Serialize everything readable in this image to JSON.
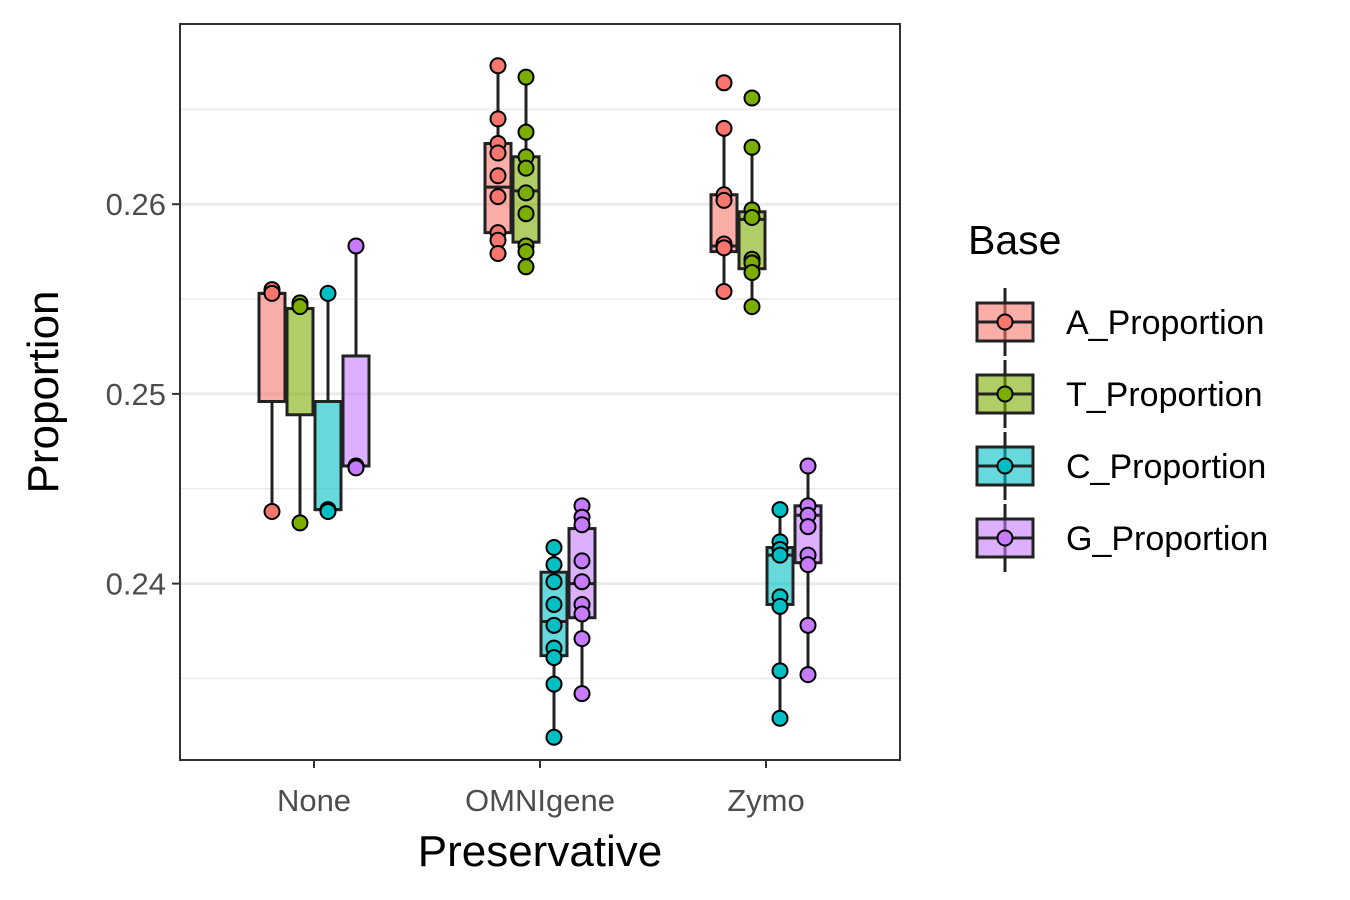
{
  "chart_data": {
    "type": "box",
    "xlabel": "Preservative",
    "ylabel": "Proportion",
    "categories": [
      "None",
      "OMNIgene",
      "Zymo"
    ],
    "ylim": [
      0.2307,
      0.2695
    ],
    "yticks": [
      0.24,
      0.25,
      0.26
    ],
    "ytick_labels": [
      "0.24",
      "0.25",
      "0.26"
    ],
    "grid": true,
    "legend": {
      "title": "Base",
      "position": "right"
    },
    "series": [
      {
        "name": "A_Proportion",
        "color": "#F8766D",
        "boxes": [
          {
            "q1": 0.2496,
            "median": 0.2553,
            "q3": 0.2553,
            "lower": 0.2438,
            "upper": 0.2555
          },
          {
            "q1": 0.2585,
            "median": 0.2609,
            "q3": 0.2632,
            "lower": 0.2573,
            "upper": 0.2673
          },
          {
            "q1": 0.2575,
            "median": 0.2578,
            "q3": 0.2605,
            "lower": 0.2554,
            "upper": 0.264
          }
        ],
        "points": [
          [
            0.2555,
            0.2553,
            0.2438
          ],
          [
            0.2673,
            0.2645,
            0.2632,
            0.2627,
            0.2615,
            0.2604,
            0.2585,
            0.2581,
            0.2574
          ],
          [
            0.2664,
            0.264,
            0.2605,
            0.2602,
            0.2579,
            0.2577,
            0.2554
          ]
        ]
      },
      {
        "name": "T_Proportion",
        "color": "#7CAE00",
        "boxes": [
          {
            "q1": 0.2489,
            "median": 0.2545,
            "q3": 0.2545,
            "lower": 0.2432,
            "upper": 0.2548
          },
          {
            "q1": 0.258,
            "median": 0.2607,
            "q3": 0.2625,
            "lower": 0.2567,
            "upper": 0.2667
          },
          {
            "q1": 0.2566,
            "median": 0.2592,
            "q3": 0.2596,
            "lower": 0.2546,
            "upper": 0.263
          }
        ],
        "points": [
          [
            0.2548,
            0.2546,
            0.2432
          ],
          [
            0.2667,
            0.2638,
            0.2625,
            0.2619,
            0.2606,
            0.2595,
            0.2578,
            0.2575,
            0.2567
          ],
          [
            0.2656,
            0.263,
            0.2597,
            0.2593,
            0.2571,
            0.2569,
            0.2564,
            0.2546
          ]
        ]
      },
      {
        "name": "C_Proportion",
        "color": "#00BFC4",
        "boxes": [
          {
            "q1": 0.2439,
            "median": 0.2439,
            "q3": 0.2496,
            "lower": 0.2439,
            "upper": 0.2553
          },
          {
            "q1": 0.2362,
            "median": 0.238,
            "q3": 0.2406,
            "lower": 0.2319,
            "upper": 0.2419
          },
          {
            "q1": 0.2389,
            "median": 0.2415,
            "q3": 0.2419,
            "lower": 0.2329,
            "upper": 0.2439
          }
        ],
        "points": [
          [
            0.2553,
            0.2439,
            0.2438
          ],
          [
            0.2419,
            0.241,
            0.2401,
            0.2389,
            0.2378,
            0.2366,
            0.2361,
            0.2347,
            0.2319
          ],
          [
            0.2439,
            0.2422,
            0.2418,
            0.2415,
            0.2393,
            0.2388,
            0.2354,
            0.2329
          ]
        ]
      },
      {
        "name": "G_Proportion",
        "color": "#C77CFF",
        "boxes": [
          {
            "q1": 0.2462,
            "median": 0.2462,
            "q3": 0.252,
            "lower": 0.2462,
            "upper": 0.2578
          },
          {
            "q1": 0.2382,
            "median": 0.24,
            "q3": 0.2429,
            "lower": 0.2342,
            "upper": 0.2441
          },
          {
            "q1": 0.2411,
            "median": 0.2436,
            "q3": 0.2441,
            "lower": 0.2352,
            "upper": 0.2462
          }
        ],
        "points": [
          [
            0.2578,
            0.2462,
            0.2461
          ],
          [
            0.2441,
            0.2435,
            0.2431,
            0.2412,
            0.2401,
            0.2389,
            0.2384,
            0.2371,
            0.2342
          ],
          [
            0.2462,
            0.2441,
            0.2436,
            0.243,
            0.2415,
            0.241,
            0.2378,
            0.2352
          ]
        ]
      }
    ]
  }
}
